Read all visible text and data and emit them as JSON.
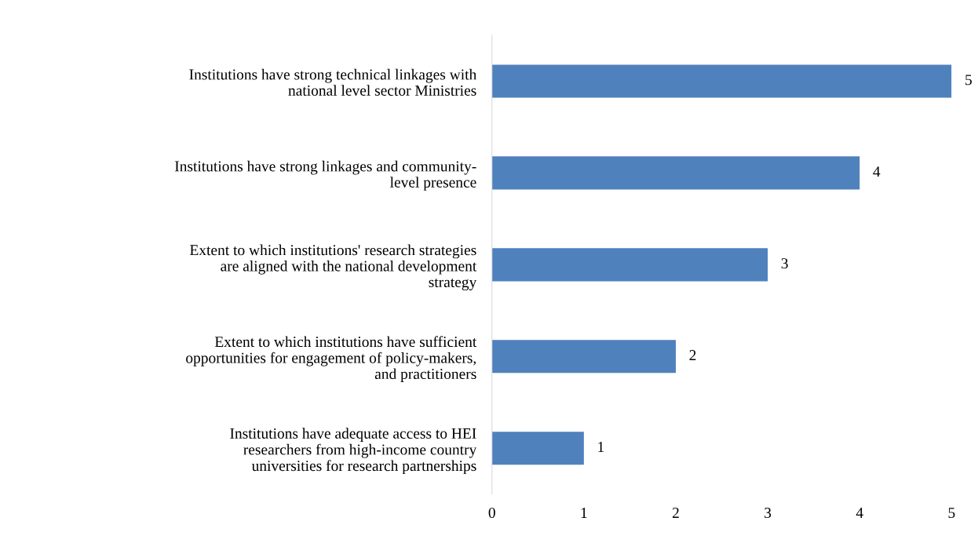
{
  "chart_data": {
    "type": "bar",
    "orientation": "horizontal",
    "categories": [
      "Institutions have strong technical linkages with\nnational level sector Ministries",
      "Institutions have strong linkages and community-\nlevel presence",
      "Extent to which institutions' research strategies\nare aligned with the national development\nstrategy",
      "Extent to which institutions have sufficient\nopportunities for engagement of policy-makers,\nand practitioners",
      "Institutions have adequate access to HEI\nresearchers from high-income country\nuniversities for research partnerships"
    ],
    "values": [
      5,
      4,
      3,
      2,
      1
    ],
    "color": "#4f81bd",
    "xlim": [
      0,
      5
    ],
    "xticks": [
      0,
      1,
      2,
      3,
      4,
      5
    ],
    "data_labels": true,
    "grid": false,
    "legend": false
  }
}
